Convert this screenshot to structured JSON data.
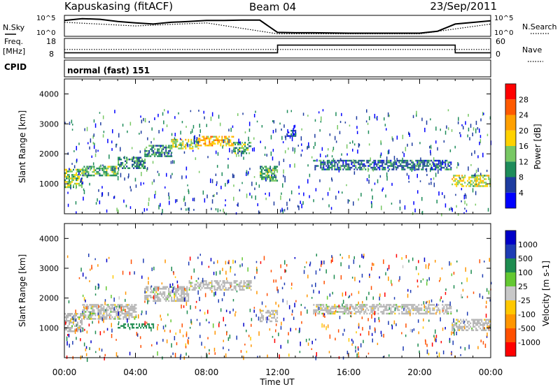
{
  "header": {
    "station": "Kapuskasing (fitACF)",
    "beam": "Beam 04",
    "date": "23/Sep/2011"
  },
  "noise_panel": {
    "left_label": "N.Sky",
    "right_label": "N.Search",
    "left_ticks": [
      "10^5",
      "10^0"
    ],
    "right_ticks": [
      "10^5",
      "10^0"
    ]
  },
  "freq_panel": {
    "left_label_line1": "Freq.",
    "left_label_line2": "[MHz]",
    "right_label": "Nave",
    "left_ticks": [
      "18",
      "8"
    ],
    "right_ticks": [
      "60",
      "0"
    ]
  },
  "cpid": {
    "label": "CPID",
    "value": "normal (fast) 151"
  },
  "x_axis": {
    "label": "Time UT",
    "ticks": [
      "00:00",
      "04:00",
      "08:00",
      "12:00",
      "16:00",
      "20:00",
      "00:00"
    ]
  },
  "colors": {
    "power_scale": [
      "#0000ff",
      "#1e3ca0",
      "#1e8c5a",
      "#78c864",
      "#ffd200",
      "#ffa000",
      "#ff5a00",
      "#ff0000"
    ],
    "velocity_scale": [
      "#ff0000",
      "#ff5000",
      "#ff9600",
      "#ffc800",
      "#c8c8c8",
      "#64c832",
      "#1e8c50",
      "#1e3cb4",
      "#0000c8"
    ],
    "ground_scatter": "#b4b4b4"
  },
  "chart_data": [
    {
      "type": "line",
      "title": "",
      "xlabel": "",
      "ylabel": "N.Sky",
      "y_scale": "log",
      "ylim": [
        1,
        100000
      ],
      "series": [
        {
          "name": "N.Sky",
          "style": "solid",
          "x": [
            "00:00",
            "01:00",
            "02:00",
            "03:00",
            "04:00",
            "05:00",
            "06:00",
            "07:00",
            "08:00",
            "09:00",
            "10:00",
            "11:00",
            "12:00",
            "13:00",
            "14:00",
            "16:00",
            "18:00",
            "20:00",
            "21:00",
            "22:00",
            "24:00"
          ],
          "values": [
            10000,
            30000,
            20000,
            5000,
            2000,
            1000,
            3000,
            5000,
            10000,
            10000,
            12000,
            12000,
            5,
            4,
            4,
            3,
            3,
            3,
            10,
            1000,
            8000
          ]
        },
        {
          "name": "N.Search",
          "style": "dotted",
          "x": [
            "00:00",
            "04:00",
            "08:00",
            "12:00",
            "16:00",
            "20:00",
            "24:00"
          ],
          "values": [
            3000,
            300,
            2000,
            2,
            2,
            2,
            1000
          ]
        }
      ]
    },
    {
      "type": "line",
      "title": "",
      "xlabel": "",
      "ylabel": "Freq. [MHz]",
      "ylim": [
        8,
        18
      ],
      "y2label": "Nave",
      "y2lim": [
        0,
        60
      ],
      "series": [
        {
          "name": "Freq.",
          "style": "solid",
          "x": [
            "00:00",
            "12:00",
            "12:00",
            "22:00",
            "22:00",
            "24:00"
          ],
          "values": [
            10,
            10,
            15,
            15,
            10,
            10
          ]
        },
        {
          "name": "Nave",
          "style": "dotted",
          "x": [
            "00:00",
            "24:00"
          ],
          "values": [
            25,
            25
          ]
        }
      ]
    },
    {
      "type": "heatmap",
      "title": "",
      "xlabel": "",
      "ylabel": "Slant Range [km]",
      "xlim": [
        "00:00",
        "24:00"
      ],
      "ylim": [
        0,
        4500
      ],
      "yticks": [
        1000,
        2000,
        3000,
        4000
      ],
      "colorbar": {
        "label": "Power [dB]",
        "ticks": [
          4,
          8,
          12,
          16,
          20,
          24,
          28
        ],
        "range": [
          0,
          32
        ]
      },
      "bands": [
        {
          "t": [
            0.0,
            1.0
          ],
          "range": [
            900,
            1500
          ],
          "value": 14
        },
        {
          "t": [
            1.0,
            3.0
          ],
          "range": [
            1300,
            1600
          ],
          "value": 12
        },
        {
          "t": [
            3.0,
            4.5
          ],
          "range": [
            1500,
            1900
          ],
          "value": 10
        },
        {
          "t": [
            4.5,
            6.0
          ],
          "range": [
            1900,
            2300
          ],
          "value": 10
        },
        {
          "t": [
            6.0,
            7.5
          ],
          "range": [
            2200,
            2500
          ],
          "value": 16
        },
        {
          "t": [
            7.5,
            9.5
          ],
          "range": [
            2300,
            2600
          ],
          "value": 20
        },
        {
          "t": [
            9.5,
            10.5
          ],
          "range": [
            2000,
            2400
          ],
          "value": 12
        },
        {
          "t": [
            11.0,
            12.0
          ],
          "range": [
            1100,
            1600
          ],
          "value": 12
        },
        {
          "t": [
            12.5,
            13.0
          ],
          "range": [
            2600,
            2800
          ],
          "value": 6
        },
        {
          "t": [
            14.0,
            21.8
          ],
          "range": [
            1500,
            1800
          ],
          "value": 8
        },
        {
          "t": [
            21.8,
            24.0
          ],
          "range": [
            900,
            1300
          ],
          "value": 16
        }
      ]
    },
    {
      "type": "heatmap",
      "title": "",
      "xlabel": "Time UT",
      "ylabel": "Slant Range [km]",
      "xlim": [
        "00:00",
        "24:00"
      ],
      "ylim": [
        0,
        4500
      ],
      "yticks": [
        1000,
        2000,
        3000,
        4000
      ],
      "colorbar": {
        "label": "Velocity [m s-1]",
        "ticks": [
          -1000,
          -500,
          -100,
          -25,
          25,
          100,
          500,
          1000
        ],
        "tick_labels": [
          "-1000",
          "-500",
          "-100",
          "-25",
          "25",
          "100",
          "500",
          "1000"
        ]
      },
      "bands": [
        {
          "t": [
            0.0,
            1.0
          ],
          "range": [
            900,
            1500
          ],
          "value": "ground"
        },
        {
          "t": [
            1.0,
            4.0
          ],
          "range": [
            1300,
            1800
          ],
          "value": "ground"
        },
        {
          "t": [
            3.0,
            5.0
          ],
          "range": [
            1000,
            1150
          ],
          "value": 150
        },
        {
          "t": [
            4.5,
            7.0
          ],
          "range": [
            1900,
            2400
          ],
          "value": "ground"
        },
        {
          "t": [
            7.0,
            10.5
          ],
          "range": [
            2300,
            2600
          ],
          "value": "ground"
        },
        {
          "t": [
            11.0,
            12.0
          ],
          "range": [
            1200,
            1600
          ],
          "value": "ground"
        },
        {
          "t": [
            14.0,
            21.8
          ],
          "range": [
            1500,
            1800
          ],
          "value": "ground"
        },
        {
          "t": [
            21.8,
            24.0
          ],
          "range": [
            900,
            1300
          ],
          "value": "ground"
        }
      ]
    }
  ]
}
